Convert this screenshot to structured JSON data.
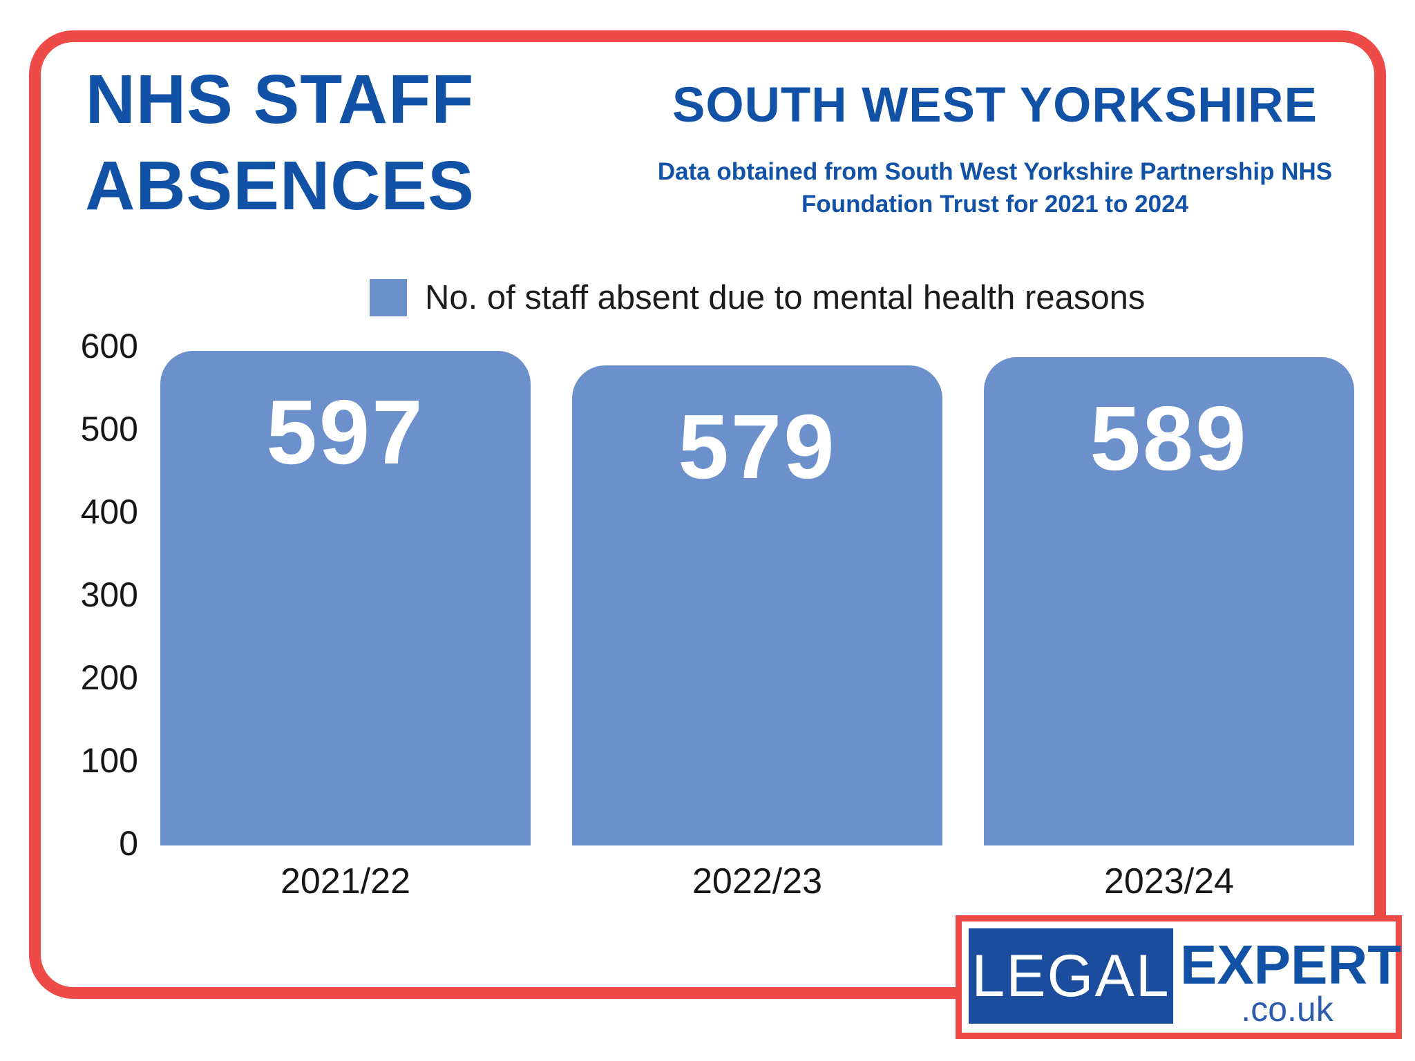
{
  "header": {
    "title_line1": "NHS STAFF",
    "title_line2": "ABSENCES",
    "region": "SOUTH WEST YORKSHIRE",
    "source_line1": "Data obtained from South West Yorkshire Partnership NHS",
    "source_line2": "Foundation Trust for 2021 to 2024"
  },
  "legend": {
    "label": "No. of staff absent due to mental health reasons"
  },
  "chart_data": {
    "type": "bar",
    "title": "NHS STAFF ABSENCES",
    "subtitle": "SOUTH WEST YORKSHIRE",
    "categories": [
      "2021/22",
      "2022/23",
      "2023/24"
    ],
    "series": [
      {
        "name": "No. of staff absent due to mental health reasons",
        "values": [
          597,
          579,
          589
        ]
      }
    ],
    "value_labels": [
      "597",
      "579",
      "589"
    ],
    "xlabel": "",
    "ylabel": "",
    "ylim": [
      0,
      600
    ],
    "yticks": [
      0,
      100,
      200,
      300,
      400,
      500,
      600
    ],
    "grid": false,
    "legend_position": "top",
    "bar_color": "#6b90cc",
    "value_label_color": "#ffffff"
  },
  "logo": {
    "box_text": "LEGAL",
    "brand_text": "EXPERT",
    "tld_text": ".co.uk"
  },
  "colors": {
    "heading_blue": "#1151a6",
    "bar_blue": "#6b90cc",
    "accent_red": "#ee4b48",
    "logo_box_blue": "#1b4c9e",
    "text_dark": "#1c1c1c"
  }
}
